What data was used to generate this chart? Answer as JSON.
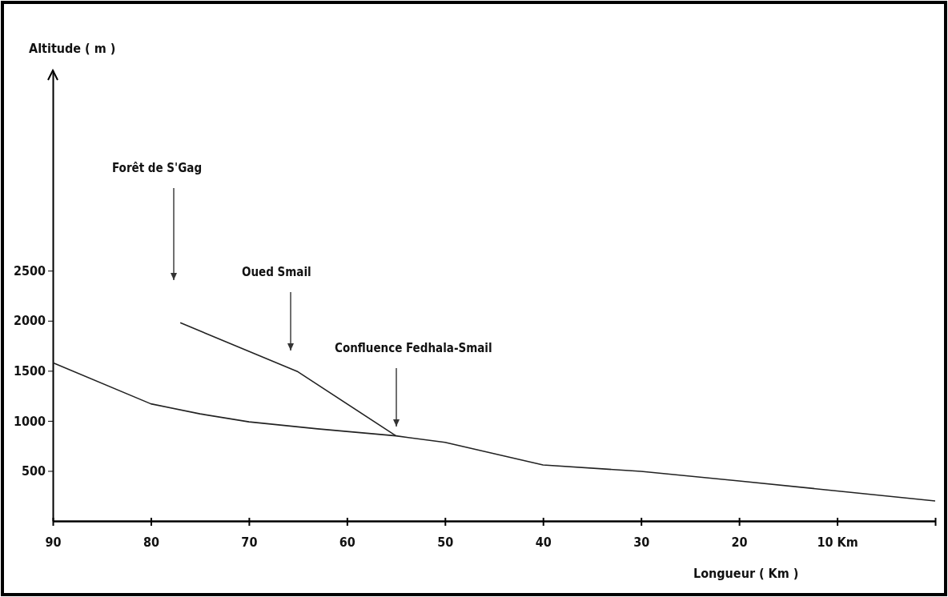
{
  "chart_data": {
    "type": "line",
    "xlabel": "Longueur ( Km )",
    "ylabel": "Altitude ( m )",
    "xlim": [
      90,
      0
    ],
    "xticks": [
      90,
      80,
      70,
      60,
      50,
      40,
      30,
      20,
      {
        "value": 10,
        "label": "10 Km"
      },
      {
        "value": 0,
        "label": null
      }
    ],
    "ylim": [
      0,
      4500
    ],
    "yticks": [
      500,
      1000,
      1500,
      2000,
      2500
    ],
    "grid": false,
    "marker": "none",
    "line_style": "solid",
    "series": [
      {
        "color": "#222222",
        "x": [
          90,
          80,
          75,
          70,
          63,
          55,
          50,
          40,
          30,
          20,
          10,
          0
        ],
        "values": [
          1580,
          1170,
          1070,
          990,
          920,
          850,
          785,
          560,
          495,
          400,
          300,
          200
        ]
      },
      {
        "color": "#222222",
        "x": [
          77,
          65,
          55
        ],
        "values": [
          1980,
          1490,
          850
        ]
      }
    ],
    "annotations": [
      "Forêt de S'Gag",
      "Oued Smail",
      "Confluence Fedhala-Smail"
    ]
  }
}
